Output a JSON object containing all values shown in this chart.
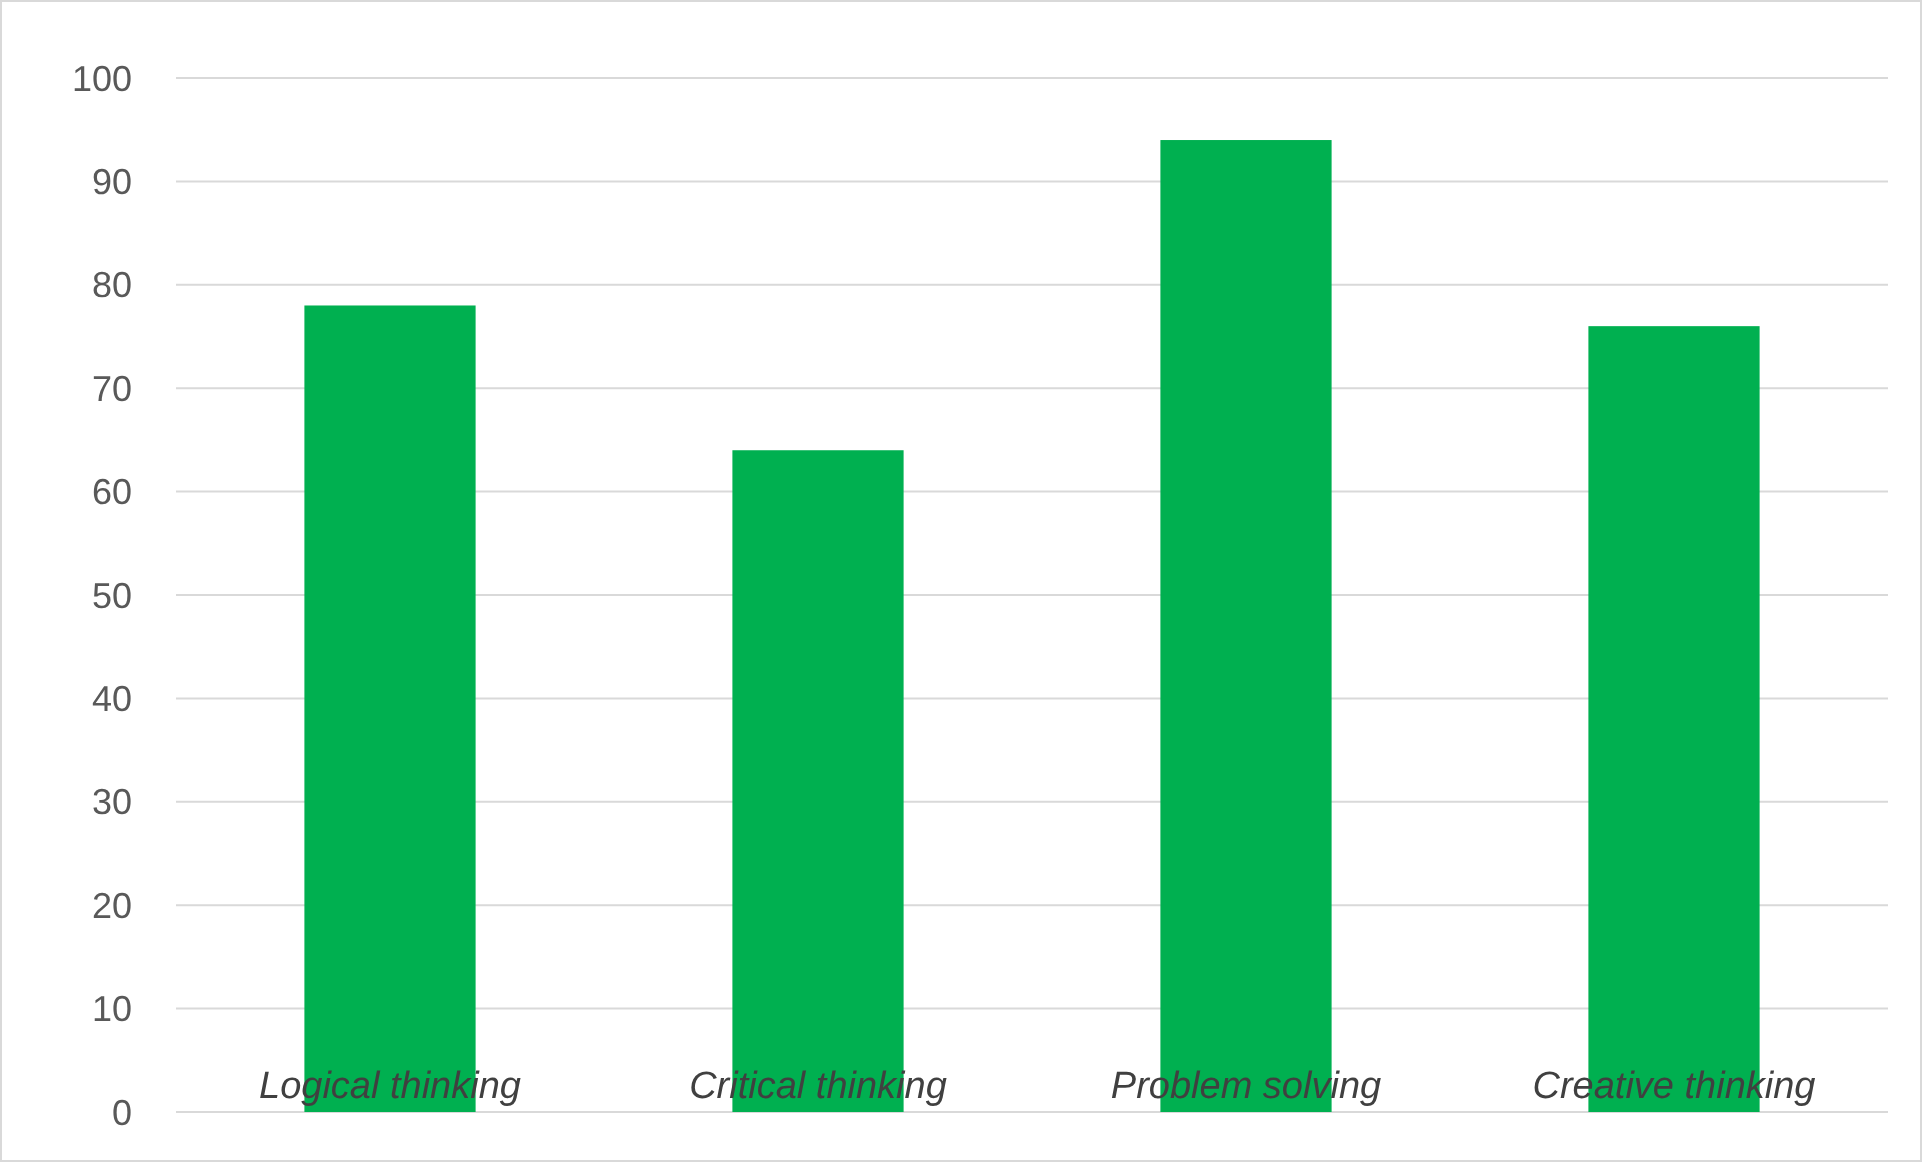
{
  "chart_data": {
    "type": "bar",
    "categories": [
      "Logical thinking",
      "Critical thinking",
      "Problem solving",
      "Creative thinking"
    ],
    "values": [
      78,
      64,
      94,
      76
    ],
    "color": "#00b050",
    "ylim": [
      0,
      100
    ],
    "yticks": [
      0,
      10,
      20,
      30,
      40,
      50,
      60,
      70,
      80,
      90,
      100
    ],
    "grid": "y"
  }
}
